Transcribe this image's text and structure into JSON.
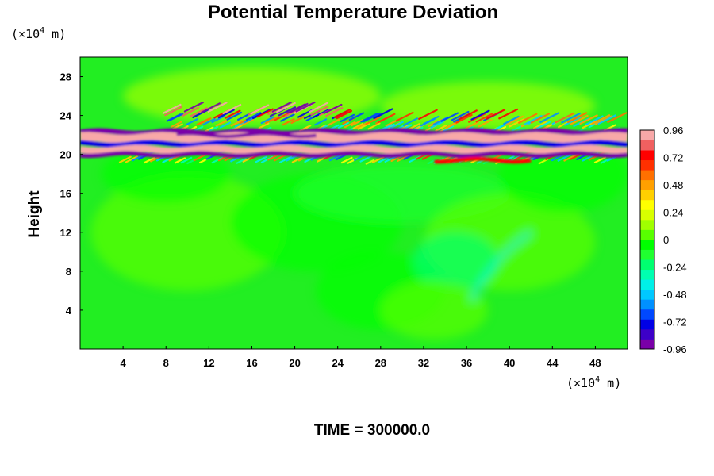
{
  "chart_data": {
    "type": "heatmap",
    "title": "Potential Temperature Deviation",
    "ylabel": "Height",
    "x_unit": {
      "prefix": "(×10",
      "exp": "4",
      "suffix": " m)"
    },
    "y_unit": {
      "prefix": "(×10",
      "exp": "4",
      "suffix": " m)"
    },
    "x_ticks": [
      4,
      8,
      12,
      16,
      20,
      24,
      28,
      32,
      36,
      40,
      44,
      48
    ],
    "y_ticks": [
      4,
      8,
      12,
      16,
      20,
      24,
      28
    ],
    "xlim": [
      0,
      51
    ],
    "ylim": [
      0,
      30
    ],
    "colorbar": {
      "ticks": [
        "0.96",
        "0.72",
        "0.48",
        "0.24",
        "0",
        "-0.24",
        "-0.48",
        "-0.72",
        "-0.96"
      ],
      "range": [
        -0.96,
        0.96
      ],
      "colors": [
        "#7a00a8",
        "#3d00c8",
        "#0000e6",
        "#0048ff",
        "#0090ff",
        "#00c8ff",
        "#00f0e8",
        "#00ffb0",
        "#00ff70",
        "#20ff30",
        "#00ff00",
        "#58ff00",
        "#a0ff00",
        "#d8ff00",
        "#ffff00",
        "#ffd000",
        "#ffa000",
        "#ff7000",
        "#ff3000",
        "#ff0000",
        "#f06060",
        "#f8a8a8"
      ]
    },
    "background_color": "#22ee22",
    "annotation": "TIME = 300000.0"
  }
}
